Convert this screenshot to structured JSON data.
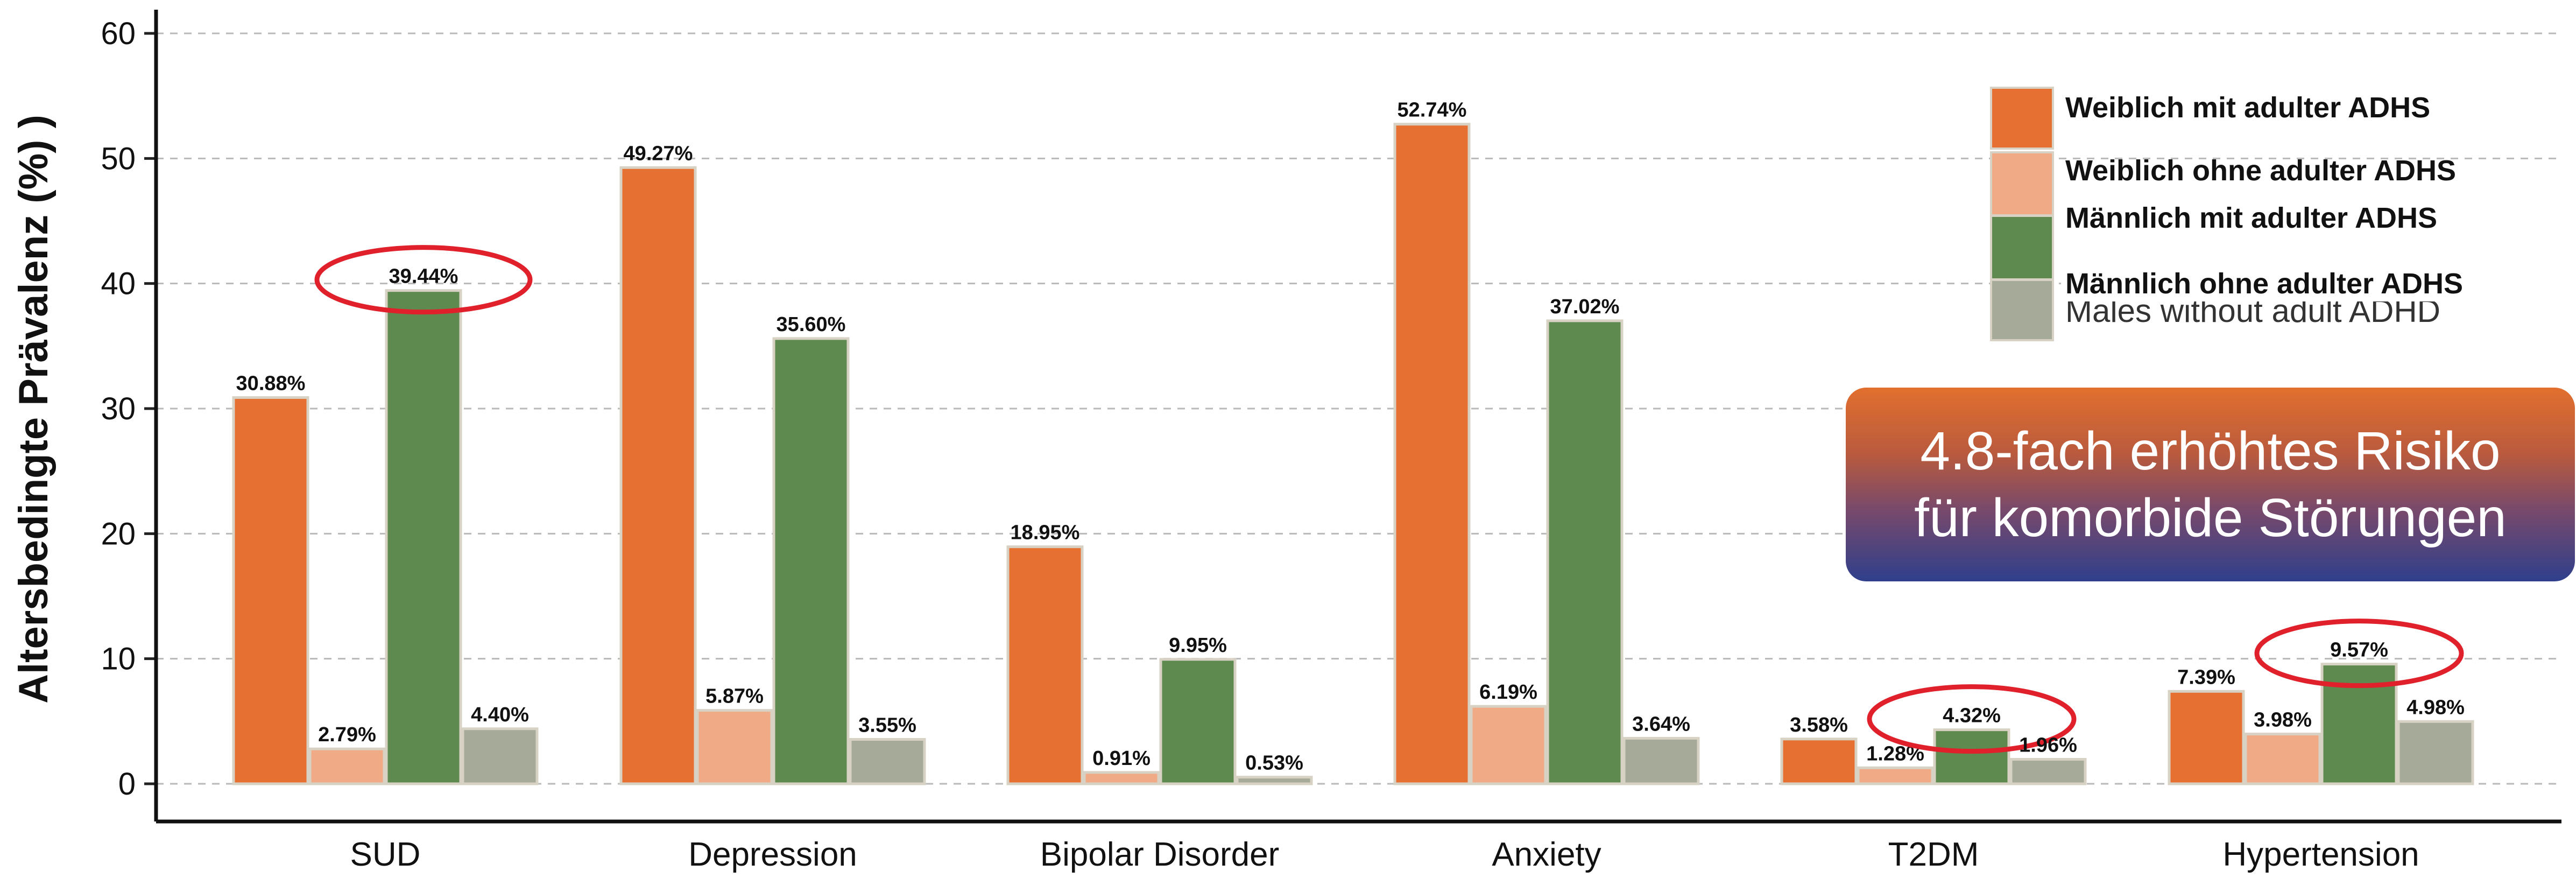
{
  "chart_data": {
    "type": "bar",
    "ylabel": "Altersbedingte Prävalenz (%) )",
    "xlabel": "",
    "ylim": [
      0,
      60
    ],
    "yticks": [
      0,
      10,
      20,
      30,
      40,
      50,
      60
    ],
    "grid": true,
    "legend_position": "top-right",
    "categories": [
      "SUD",
      "Depression",
      "Bipolar Disorder",
      "Anxiety",
      "T2DM",
      "Hypertension"
    ],
    "series": [
      {
        "name": "Weiblich mit adulter ADHS",
        "color": "#e66f32",
        "values": [
          30.88,
          49.27,
          18.95,
          52.74,
          3.58,
          7.39
        ],
        "labels": [
          "30.88%",
          "49.27%",
          "18.95%",
          "52.74%",
          "3.58%",
          "7.39%"
        ]
      },
      {
        "name": "Weiblich ohne adulter ADHS",
        "color": "#f0ab86",
        "values": [
          2.79,
          5.87,
          0.91,
          6.19,
          1.28,
          3.98
        ],
        "labels": [
          "2.79%",
          "5.87%",
          "0.91%",
          "6.19%",
          "1.28%",
          "3.98%"
        ]
      },
      {
        "name": "Männlich mit adulter ADHS",
        "color": "#5f8a4f",
        "values": [
          39.44,
          35.6,
          9.95,
          37.02,
          4.32,
          9.57
        ],
        "labels": [
          "39.44%",
          "35.60%",
          "9.95%",
          "37.02%",
          "4.32%",
          "9.57%"
        ]
      },
      {
        "name": "Männlich ohne adulter ADHS",
        "color": "#a6aa98",
        "values": [
          4.4,
          3.55,
          0.53,
          3.64,
          1.96,
          4.98
        ],
        "labels": [
          "4.40%",
          "3.55%",
          "0.53%",
          "3.64%",
          "1.96%",
          "4.98%"
        ]
      }
    ],
    "legend_residual_text": "Males without adult ADHD",
    "highlighted_bars": [
      {
        "category": "SUD",
        "series": "Männlich mit adulter ADHS"
      },
      {
        "category": "T2DM",
        "series": "Männlich mit adulter ADHS"
      },
      {
        "category": "Hypertension",
        "series": "Männlich mit adulter ADHS"
      }
    ],
    "highlight_color": "#e0202a"
  },
  "callout": {
    "line1": "4.8-fach erhöhtes Risiko",
    "line2": "für komorbide Störungen"
  }
}
